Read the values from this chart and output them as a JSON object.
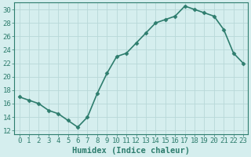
{
  "x": [
    0,
    1,
    2,
    3,
    4,
    5,
    6,
    7,
    8,
    9,
    10,
    11,
    12,
    13,
    14,
    15,
    16,
    17,
    18,
    19,
    20,
    21,
    22,
    23
  ],
  "y": [
    17,
    16.5,
    16,
    15,
    14.5,
    13.5,
    12.5,
    14,
    17.5,
    20.5,
    23,
    23.5,
    25,
    26.5,
    28,
    28.5,
    29,
    30.5,
    30,
    29.5,
    29,
    27,
    23.5,
    22
  ],
  "line_color": "#2e7d6e",
  "marker": "D",
  "marker_size": 2.5,
  "bg_color": "#d5eeee",
  "grid_color": "#b8d8d8",
  "xlabel": "Humidex (Indice chaleur)",
  "xlim": [
    -0.5,
    23.5
  ],
  "ylim": [
    11.5,
    31
  ],
  "yticks": [
    12,
    14,
    16,
    18,
    20,
    22,
    24,
    26,
    28,
    30
  ],
  "xticks": [
    0,
    1,
    2,
    3,
    4,
    5,
    6,
    7,
    8,
    9,
    10,
    11,
    12,
    13,
    14,
    15,
    16,
    17,
    18,
    19,
    20,
    21,
    22,
    23
  ],
  "font_color": "#2e7d6e",
  "tick_font_size": 6.5,
  "xlabel_fontsize": 7.5,
  "linewidth": 1.2
}
